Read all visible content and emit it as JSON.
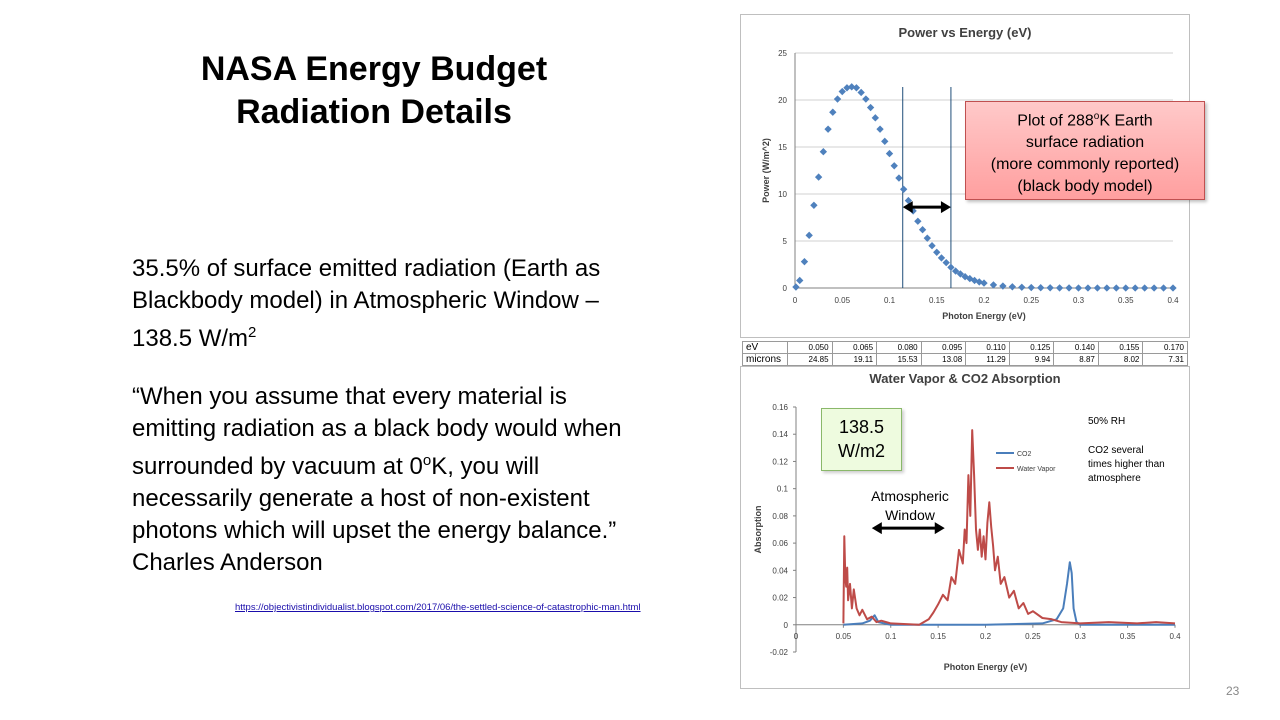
{
  "slide": {
    "title_line1": "NASA Energy Budget",
    "title_line2": "Radiation Details",
    "para1": {
      "text": "35.5% of surface emitted radiation (Earth as Blackbody model) in Atmospheric Window – 138.5 W/m",
      "sup": "2"
    },
    "para2": {
      "part1": "“When you assume that every material is emitting radiation as a black body would when surrounded by vacuum at 0",
      "sup": "o",
      "part2": "K, you will necessarily generate a host of non-existent photons which will upset the energy balance.”   Charles Anderson"
    },
    "link": "https://objectivistindividualist.blogspot.com/2017/06/the-settled-science-of-catastrophic-man.html",
    "page_number": "23"
  },
  "callout_red": {
    "line1_a": "Plot of 288",
    "line1_sup": "o",
    "line1_b": "K Earth",
    "line2": "surface radiation",
    "line3": "(more commonly reported)",
    "line4": "(black body model)"
  },
  "callout_green": {
    "line1": "138.5",
    "line2": "W/m2"
  },
  "colors": {
    "co2": "#4a7ebb",
    "water_vapor": "#be4b48",
    "blackbody": "#4f81bd",
    "window_line": "#1f4e79"
  },
  "energy_table": {
    "rows": [
      {
        "label": "eV",
        "values": [
          "0.050",
          "0.065",
          "0.080",
          "0.095",
          "0.110",
          "0.125",
          "0.140",
          "0.155",
          "0.170"
        ]
      },
      {
        "label": "microns",
        "values": [
          "24.85",
          "19.11",
          "15.53",
          "13.08",
          "11.29",
          "9.94",
          "8.87",
          "8.02",
          "7.31"
        ]
      }
    ]
  },
  "chart_data": [
    {
      "type": "scatter",
      "title": "Power vs Energy (eV)",
      "xlabel": "Photon Energy (eV)",
      "ylabel": "Power (W/m^2)",
      "xlim": [
        0,
        0.4
      ],
      "ylim": [
        0,
        25
      ],
      "xticks": [
        "0",
        "0.05",
        "0.1",
        "0.15",
        "0.2",
        "0.25",
        "0.3",
        "0.35",
        "0.4"
      ],
      "yticks": [
        "0",
        "5",
        "10",
        "15",
        "20",
        "25"
      ],
      "grid": true,
      "vertical_lines_x": [
        0.114,
        0.165
      ],
      "arrow": {
        "x_from": 0.114,
        "x_to": 0.165,
        "y": 8.6
      },
      "series": [
        {
          "points": [
            [
              0.001,
              0.1
            ],
            [
              0.005,
              0.8
            ],
            [
              0.01,
              2.8
            ],
            [
              0.015,
              5.6
            ],
            [
              0.02,
              8.8
            ],
            [
              0.025,
              11.8
            ],
            [
              0.03,
              14.5
            ],
            [
              0.035,
              16.9
            ],
            [
              0.04,
              18.7
            ],
            [
              0.045,
              20.1
            ],
            [
              0.05,
              20.9
            ],
            [
              0.055,
              21.3
            ],
            [
              0.06,
              21.4
            ],
            [
              0.065,
              21.3
            ],
            [
              0.07,
              20.8
            ],
            [
              0.075,
              20.1
            ],
            [
              0.08,
              19.2
            ],
            [
              0.085,
              18.1
            ],
            [
              0.09,
              16.9
            ],
            [
              0.095,
              15.6
            ],
            [
              0.1,
              14.3
            ],
            [
              0.105,
              13
            ],
            [
              0.11,
              11.7
            ],
            [
              0.115,
              10.5
            ],
            [
              0.12,
              9.3
            ],
            [
              0.125,
              8.2
            ],
            [
              0.13,
              7.1
            ],
            [
              0.135,
              6.2
            ],
            [
              0.14,
              5.3
            ],
            [
              0.145,
              4.5
            ],
            [
              0.15,
              3.8
            ],
            [
              0.155,
              3.2
            ],
            [
              0.16,
              2.7
            ],
            [
              0.165,
              2.2
            ],
            [
              0.17,
              1.8
            ],
            [
              0.175,
              1.5
            ],
            [
              0.18,
              1.2
            ],
            [
              0.185,
              1
            ],
            [
              0.19,
              0.8
            ],
            [
              0.195,
              0.65
            ],
            [
              0.2,
              0.52
            ],
            [
              0.21,
              0.33
            ],
            [
              0.22,
              0.21
            ],
            [
              0.23,
              0.13
            ],
            [
              0.24,
              0.08
            ],
            [
              0.25,
              0.05
            ],
            [
              0.26,
              0.03
            ],
            [
              0.27,
              0.02
            ],
            [
              0.28,
              0.01
            ],
            [
              0.29,
              0.01
            ],
            [
              0.3,
              0
            ],
            [
              0.31,
              0
            ],
            [
              0.32,
              0
            ],
            [
              0.33,
              0
            ],
            [
              0.34,
              0
            ],
            [
              0.35,
              0
            ],
            [
              0.36,
              0
            ],
            [
              0.37,
              0
            ],
            [
              0.38,
              0
            ],
            [
              0.39,
              0
            ],
            [
              0.4,
              0
            ]
          ]
        }
      ]
    },
    {
      "type": "line",
      "title": "Water Vapor & CO2 Absorption",
      "xlabel": "Photon Energy (eV)",
      "ylabel": "Absorption",
      "xlim": [
        0,
        0.4
      ],
      "ylim": [
        -0.02,
        0.16
      ],
      "xticks": [
        "0",
        "0.05",
        "0.1",
        "0.15",
        "0.2",
        "0.25",
        "0.3",
        "0.35",
        "0.4"
      ],
      "yticks": [
        "-0.02",
        "0",
        "0.02",
        "0.04",
        "0.06",
        "0.08",
        "0.1",
        "0.12",
        "0.14",
        "0.16"
      ],
      "grid": false,
      "legend": [
        "CO2",
        "Water Vapor"
      ],
      "annotations": {
        "rh": "50% RH",
        "co2_note_1": "CO2 several",
        "co2_note_2": "times higher than",
        "co2_note_3": "atmosphere",
        "window_1": "Atmospheric",
        "window_2": "Window"
      },
      "arrow": {
        "x_from": 0.08,
        "x_to": 0.157,
        "y": 0.071
      },
      "series": [
        {
          "name": "CO2",
          "points": [
            [
              0.05,
              0
            ],
            [
              0.07,
              0.001
            ],
            [
              0.078,
              0.003
            ],
            [
              0.083,
              0.007
            ],
            [
              0.087,
              0.002
            ],
            [
              0.1,
              0
            ],
            [
              0.2,
              0
            ],
            [
              0.26,
              0.001
            ],
            [
              0.275,
              0.004
            ],
            [
              0.282,
              0.012
            ],
            [
              0.286,
              0.03
            ],
            [
              0.289,
              0.046
            ],
            [
              0.291,
              0.038
            ],
            [
              0.293,
              0.012
            ],
            [
              0.296,
              0.002
            ],
            [
              0.3,
              0
            ],
            [
              0.4,
              0
            ]
          ]
        },
        {
          "name": "Water Vapor",
          "points": [
            [
              0.05,
              0.001
            ],
            [
              0.051,
              0.065
            ],
            [
              0.052,
              0.035
            ],
            [
              0.053,
              0.028
            ],
            [
              0.054,
              0.042
            ],
            [
              0.055,
              0.018
            ],
            [
              0.057,
              0.03
            ],
            [
              0.059,
              0.012
            ],
            [
              0.061,
              0.026
            ],
            [
              0.064,
              0.012
            ],
            [
              0.067,
              0.007
            ],
            [
              0.07,
              0.011
            ],
            [
              0.075,
              0.004
            ],
            [
              0.08,
              0.006
            ],
            [
              0.085,
              0.002
            ],
            [
              0.09,
              0.003
            ],
            [
              0.1,
              0.001
            ],
            [
              0.13,
              0
            ],
            [
              0.14,
              0.004
            ],
            [
              0.145,
              0.009
            ],
            [
              0.15,
              0.015
            ],
            [
              0.155,
              0.022
            ],
            [
              0.16,
              0.018
            ],
            [
              0.164,
              0.035
            ],
            [
              0.168,
              0.03
            ],
            [
              0.172,
              0.055
            ],
            [
              0.176,
              0.045
            ],
            [
              0.178,
              0.07
            ],
            [
              0.18,
              0.06
            ],
            [
              0.182,
              0.11
            ],
            [
              0.184,
              0.08
            ],
            [
              0.186,
              0.143
            ],
            [
              0.188,
              0.11
            ],
            [
              0.19,
              0.07
            ],
            [
              0.192,
              0.055
            ],
            [
              0.194,
              0.07
            ],
            [
              0.196,
              0.05
            ],
            [
              0.198,
              0.065
            ],
            [
              0.2,
              0.048
            ],
            [
              0.202,
              0.075
            ],
            [
              0.204,
              0.09
            ],
            [
              0.206,
              0.072
            ],
            [
              0.208,
              0.058
            ],
            [
              0.21,
              0.04
            ],
            [
              0.213,
              0.05
            ],
            [
              0.216,
              0.03
            ],
            [
              0.22,
              0.035
            ],
            [
              0.225,
              0.02
            ],
            [
              0.23,
              0.025
            ],
            [
              0.235,
              0.012
            ],
            [
              0.24,
              0.016
            ],
            [
              0.245,
              0.008
            ],
            [
              0.25,
              0.01
            ],
            [
              0.26,
              0.005
            ],
            [
              0.27,
              0.004
            ],
            [
              0.28,
              0.002
            ],
            [
              0.3,
              0.001
            ],
            [
              0.33,
              0.002
            ],
            [
              0.36,
              0.001
            ],
            [
              0.38,
              0.002
            ],
            [
              0.4,
              0.001
            ]
          ]
        }
      ]
    }
  ]
}
